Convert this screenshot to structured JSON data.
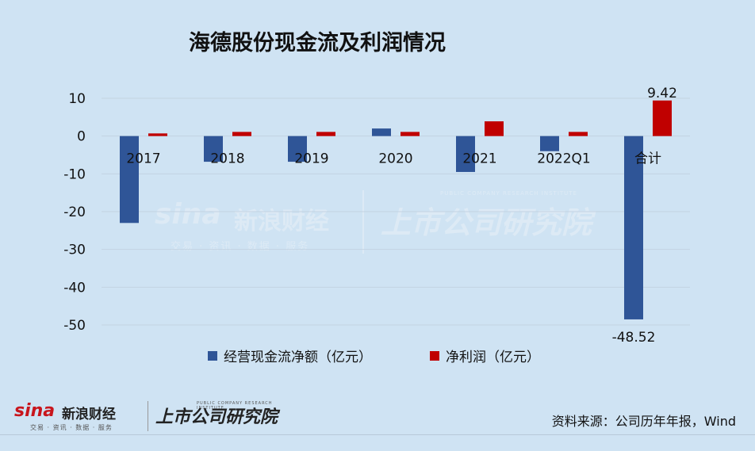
{
  "chart_data": {
    "type": "bar",
    "title": "海德股份现金流及利润情况",
    "categories": [
      "2017",
      "2018",
      "2019",
      "2020",
      "2021",
      "2022Q1",
      "合计"
    ],
    "series": [
      {
        "name": "经营现金流净额（亿元）",
        "color": "#2f5597",
        "values": [
          -23.0,
          -6.8,
          -6.8,
          2.0,
          -9.5,
          -4.0,
          -48.52
        ]
      },
      {
        "name": "净利润（亿元）",
        "color": "#c00000",
        "values": [
          0.7,
          1.1,
          1.1,
          1.1,
          3.9,
          1.1,
          9.42
        ]
      }
    ],
    "data_labels": {
      "total_cash_flow": "-48.52",
      "total_profit": "9.42"
    },
    "yticks": [
      "10",
      "0",
      "-10",
      "-20",
      "-30",
      "-40",
      "-50"
    ],
    "ylim": [
      -50,
      10
    ],
    "grid": true,
    "legend_position": "bottom"
  },
  "watermark": {
    "sina": "sina",
    "brand": "新浪财经",
    "tags": "交易 · 资讯 · 数据 · 服务",
    "institute": "上市公司研究院",
    "institute_en": "PUBLIC COMPANY RESEARCH INSTITUTE"
  },
  "footer": {
    "sina": "sina",
    "brand": "新浪财经",
    "tags": "交易 · 资讯 · 数据 · 服务",
    "institute": "上市公司研究院",
    "institute_en": "PUBLIC COMPANY RESEARCH INSTITUTE",
    "source": "资料来源：公司历年年报，Wind"
  }
}
